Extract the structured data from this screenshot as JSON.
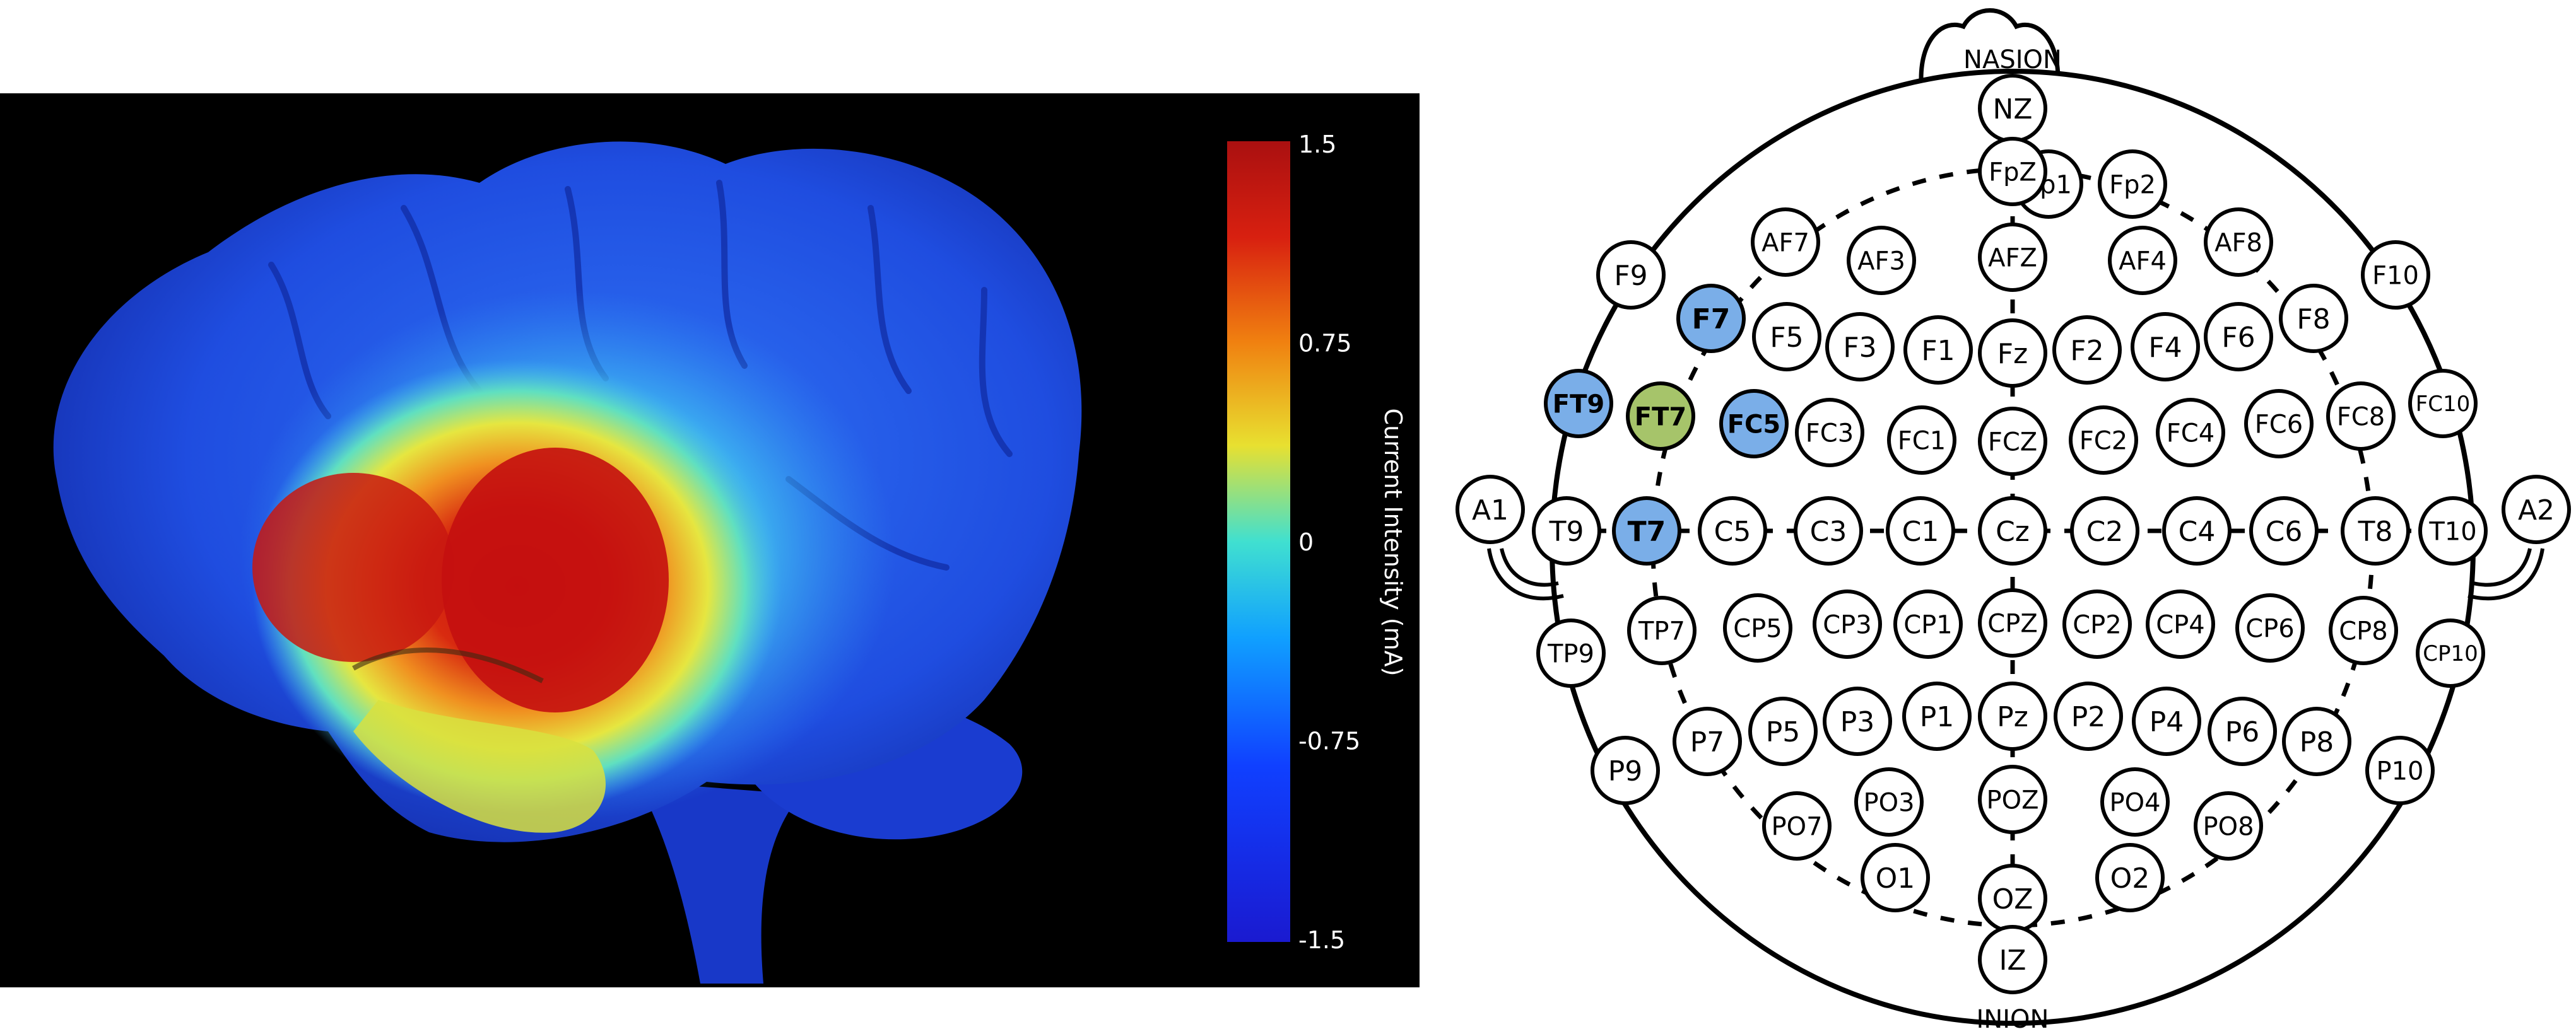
{
  "colorbar": {
    "title": "Current Intensity (mA)",
    "ticks": [
      "1.5",
      "0.75",
      "0",
      "-0.75",
      "-1.5"
    ],
    "colors": [
      "#b01010",
      "#f0d020",
      "#40e0d0",
      "#1040ff",
      "#1a1ad0"
    ]
  },
  "montage": {
    "nasion_label": "NASION",
    "inion_label": "INION",
    "electrodes": [
      {
        "label": "NZ",
        "state": "normal"
      },
      {
        "label": "Fp1",
        "state": "normal"
      },
      {
        "label": "FpZ",
        "state": "normal"
      },
      {
        "label": "Fp2",
        "state": "normal"
      },
      {
        "label": "AF7",
        "state": "normal"
      },
      {
        "label": "AF3",
        "state": "normal"
      },
      {
        "label": "AFZ",
        "state": "normal"
      },
      {
        "label": "AF4",
        "state": "normal"
      },
      {
        "label": "AF8",
        "state": "normal"
      },
      {
        "label": "F9",
        "state": "normal"
      },
      {
        "label": "F7",
        "state": "blue"
      },
      {
        "label": "F5",
        "state": "normal"
      },
      {
        "label": "F3",
        "state": "normal"
      },
      {
        "label": "F1",
        "state": "normal"
      },
      {
        "label": "Fz",
        "state": "normal"
      },
      {
        "label": "F2",
        "state": "normal"
      },
      {
        "label": "F4",
        "state": "normal"
      },
      {
        "label": "F6",
        "state": "normal"
      },
      {
        "label": "F8",
        "state": "normal"
      },
      {
        "label": "F10",
        "state": "normal"
      },
      {
        "label": "FT9",
        "state": "blue"
      },
      {
        "label": "FT7",
        "state": "green"
      },
      {
        "label": "FC5",
        "state": "blue"
      },
      {
        "label": "FC3",
        "state": "normal"
      },
      {
        "label": "FC1",
        "state": "normal"
      },
      {
        "label": "FCZ",
        "state": "normal"
      },
      {
        "label": "FC2",
        "state": "normal"
      },
      {
        "label": "FC4",
        "state": "normal"
      },
      {
        "label": "FC6",
        "state": "normal"
      },
      {
        "label": "FC8",
        "state": "normal"
      },
      {
        "label": "FC10",
        "state": "normal"
      },
      {
        "label": "A1",
        "state": "normal"
      },
      {
        "label": "T9",
        "state": "normal"
      },
      {
        "label": "T7",
        "state": "blue"
      },
      {
        "label": "C5",
        "state": "normal"
      },
      {
        "label": "C3",
        "state": "normal"
      },
      {
        "label": "C1",
        "state": "normal"
      },
      {
        "label": "Cz",
        "state": "normal"
      },
      {
        "label": "C2",
        "state": "normal"
      },
      {
        "label": "C4",
        "state": "normal"
      },
      {
        "label": "C6",
        "state": "normal"
      },
      {
        "label": "T8",
        "state": "normal"
      },
      {
        "label": "T10",
        "state": "normal"
      },
      {
        "label": "A2",
        "state": "normal"
      },
      {
        "label": "TP9",
        "state": "normal"
      },
      {
        "label": "TP7",
        "state": "normal"
      },
      {
        "label": "CP5",
        "state": "normal"
      },
      {
        "label": "CP3",
        "state": "normal"
      },
      {
        "label": "CP1",
        "state": "normal"
      },
      {
        "label": "CPZ",
        "state": "normal"
      },
      {
        "label": "CP2",
        "state": "normal"
      },
      {
        "label": "CP4",
        "state": "normal"
      },
      {
        "label": "CP6",
        "state": "normal"
      },
      {
        "label": "CP8",
        "state": "normal"
      },
      {
        "label": "CP10",
        "state": "normal"
      },
      {
        "label": "P9",
        "state": "normal"
      },
      {
        "label": "P7",
        "state": "normal"
      },
      {
        "label": "P5",
        "state": "normal"
      },
      {
        "label": "P3",
        "state": "normal"
      },
      {
        "label": "P1",
        "state": "normal"
      },
      {
        "label": "Pz",
        "state": "normal"
      },
      {
        "label": "P2",
        "state": "normal"
      },
      {
        "label": "P4",
        "state": "normal"
      },
      {
        "label": "P6",
        "state": "normal"
      },
      {
        "label": "P8",
        "state": "normal"
      },
      {
        "label": "P10",
        "state": "normal"
      },
      {
        "label": "PO7",
        "state": "normal"
      },
      {
        "label": "PO3",
        "state": "normal"
      },
      {
        "label": "POZ",
        "state": "normal"
      },
      {
        "label": "PO4",
        "state": "normal"
      },
      {
        "label": "PO8",
        "state": "normal"
      },
      {
        "label": "O1",
        "state": "normal"
      },
      {
        "label": "OZ",
        "state": "normal"
      },
      {
        "label": "O2",
        "state": "normal"
      },
      {
        "label": "IZ",
        "state": "normal"
      }
    ]
  },
  "colors": {
    "electrode_blue": "#7aaee8",
    "electrode_green": "#a6c46a"
  }
}
